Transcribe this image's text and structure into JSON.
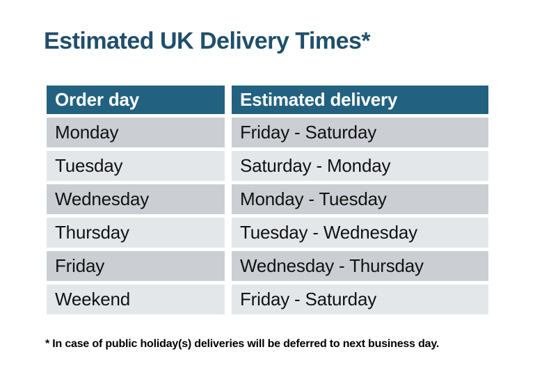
{
  "title": "Estimated UK Delivery Times*",
  "table": {
    "headers": {
      "order_day": "Order day",
      "estimated_delivery": "Estimated delivery"
    },
    "rows": [
      {
        "order_day": "Monday",
        "delivery": "Friday - Saturday"
      },
      {
        "order_day": "Tuesday",
        "delivery": "Saturday - Monday"
      },
      {
        "order_day": "Wednesday",
        "delivery": "Monday - Tuesday"
      },
      {
        "order_day": "Thursday",
        "delivery": "Tuesday - Wednesday"
      },
      {
        "order_day": "Friday",
        "delivery": "Wednesday - Thursday"
      },
      {
        "order_day": "Weekend",
        "delivery": "Friday - Saturday"
      }
    ]
  },
  "footnote": "* In case of public holiday(s) deliveries will be deferred to next business day.",
  "colors": {
    "title_text": "#204F6A",
    "header_bg": "#236180",
    "header_text": "#FFFFFF",
    "row_dark": "#CBCFD4",
    "row_light": "#E4E7EA",
    "body_text": "#121212",
    "page_bg": "#FFFFFF"
  }
}
